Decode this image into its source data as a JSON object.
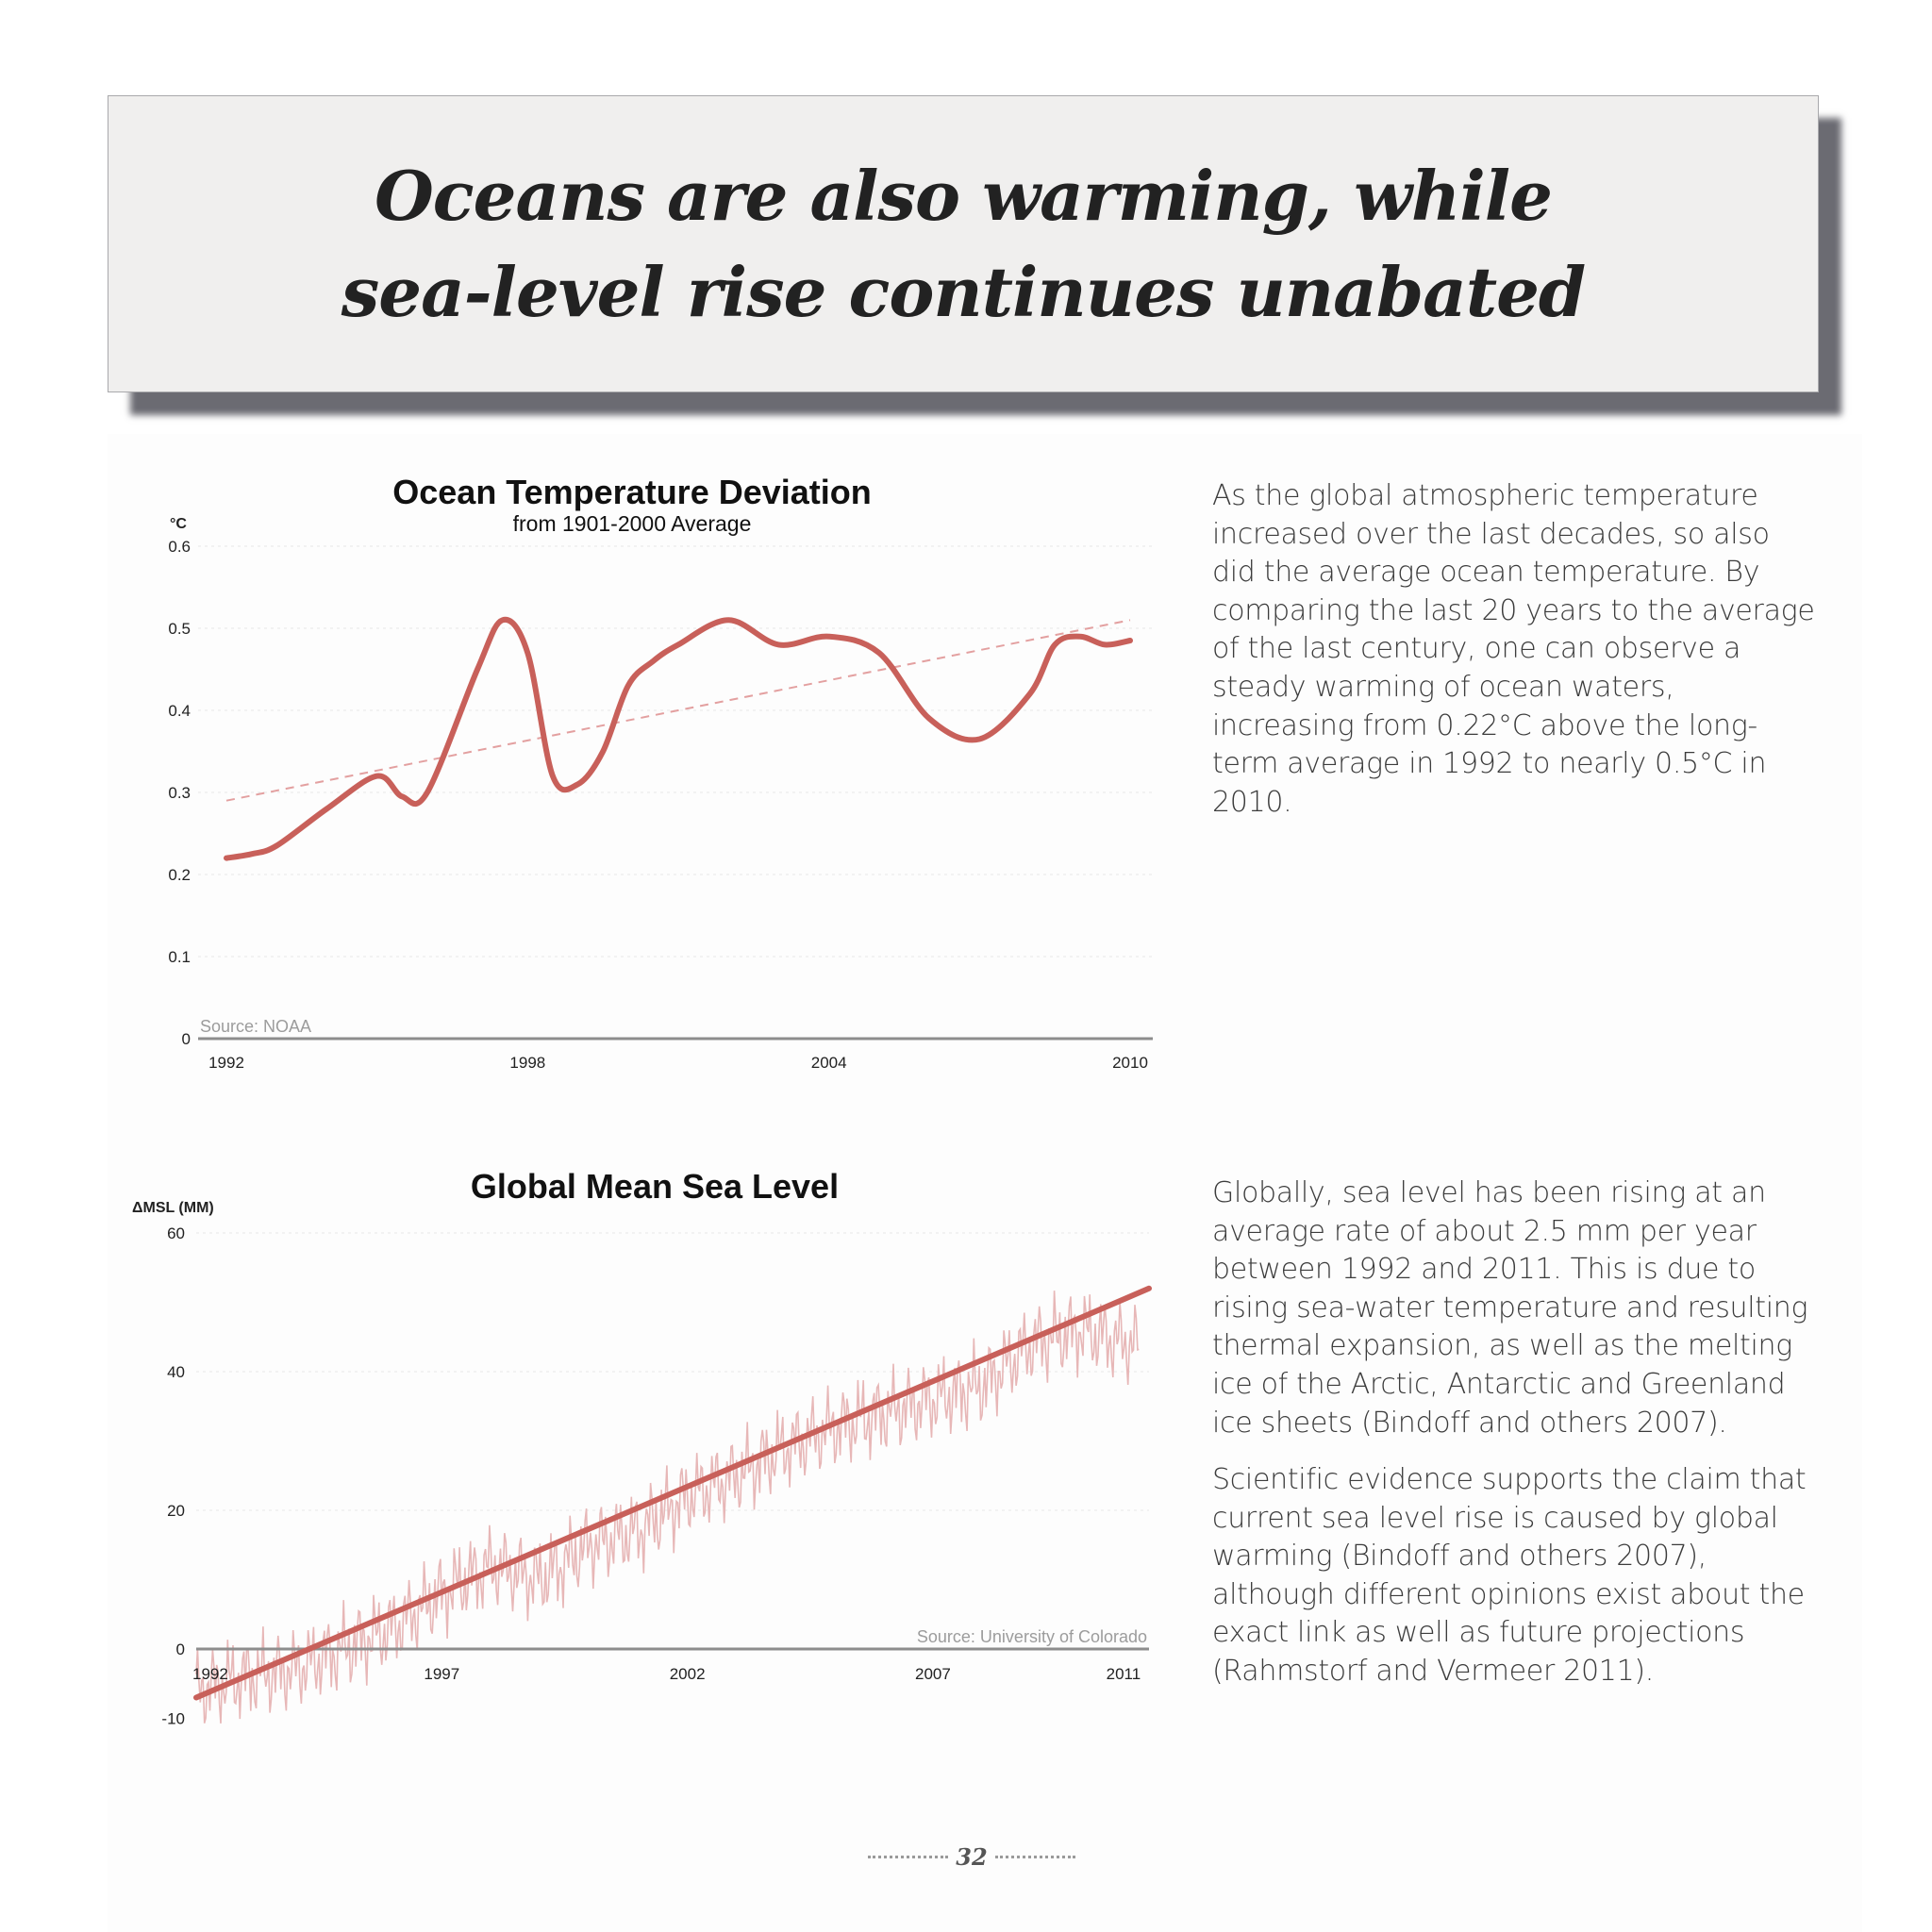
{
  "page": {
    "title": "Oceans are also warming, while sea-level rise continues unabated",
    "page_number": "32",
    "paragraph_1": "As the global atmospheric temperature increased over the last decades, so also did the average ocean temperature. By comparing the last 20 years to the average of the last century, one can observe a steady warming of ocean waters, increasing from 0.22°C above the long-term average in 1992 to nearly 0.5°C in 2010.",
    "paragraph_2": "Globally, sea level has been rising at an average rate of about 2.5 mm per year between 1992 and 2011. This is due to rising sea-water temperature and resulting thermal expansion, as well as the melting ice of the Arctic, Antarctic and Greenland ice sheets (Bindoff and others 2007).",
    "paragraph_3": "Scientific evidence supports the claim that current sea level rise is caused by global warming (Bindoff and others 2007), although different opinions exist about the exact link as well as future projections (Rahmstorf and Vermeer 2011)."
  },
  "colors": {
    "series_line": "#c8605a",
    "trend_dashed": "#e3a0a0",
    "noise_line": "#e7b7b7",
    "axis": "#8d8d8d",
    "title_box_bg": "#f0efee",
    "title_box_shadow": "#6b6b72"
  },
  "chart_data": [
    {
      "type": "line",
      "title": "Ocean Temperature Deviation",
      "subtitle": "from 1901-2000 Average",
      "ylabel": "°C",
      "source": "Source: NOAA",
      "xlim": [
        1992,
        2010
      ],
      "ylim": [
        0,
        0.6
      ],
      "yticks": [
        0,
        0.1,
        0.2,
        0.3,
        0.4,
        0.5,
        0.6
      ],
      "ytick_labels": [
        "0",
        "0.1",
        "0.2",
        "0.3",
        "0.4",
        "0.5",
        "0.6"
      ],
      "xticks": [
        1992,
        1998,
        2004,
        2010
      ],
      "xtick_labels": [
        "1992",
        "1998",
        "2004",
        "2010"
      ],
      "grid": true,
      "series": [
        {
          "x": [
            1992,
            1992.5,
            1993,
            1994,
            1995,
            1995.5,
            1996,
            1997,
            1997.5,
            1998,
            1998.5,
            1999,
            1999.5,
            2000,
            2000.5,
            2001,
            2002,
            2003,
            2004,
            2005,
            2006,
            2007,
            2008,
            2008.5,
            2009,
            2009.5,
            2010
          ],
          "y": [
            0.22,
            0.225,
            0.235,
            0.28,
            0.32,
            0.295,
            0.3,
            0.45,
            0.51,
            0.47,
            0.32,
            0.31,
            0.35,
            0.43,
            0.46,
            0.48,
            0.51,
            0.48,
            0.49,
            0.47,
            0.39,
            0.365,
            0.42,
            0.48,
            0.49,
            0.48,
            0.485
          ]
        }
      ],
      "trend": {
        "x": [
          1992,
          2010
        ],
        "y": [
          0.29,
          0.51
        ]
      }
    },
    {
      "type": "line",
      "title": "Global Mean Sea Level",
      "ylabel": "ΔMSL (MM)",
      "source": "Source: University of Colorado",
      "xlim": [
        1992,
        2011.4
      ],
      "ylim": [
        -10,
        60
      ],
      "yticks": [
        -10,
        0,
        20,
        40,
        60
      ],
      "ytick_labels": [
        "-10",
        "0",
        "20",
        "40",
        "60"
      ],
      "xticks": [
        1992,
        1997,
        2002,
        2007,
        2011
      ],
      "xtick_labels": [
        "1992",
        "1997",
        "2002",
        "2007",
        "2011"
      ],
      "grid": true,
      "series": [
        {
          "x": [
            1992,
            1993,
            1994,
            1995,
            1996,
            1997,
            1998,
            1999,
            2000,
            2001,
            2002,
            2003,
            2004,
            2005,
            2006,
            2007,
            2008,
            2009,
            2010,
            2011
          ],
          "y": [
            -6,
            -4,
            -3,
            0,
            3,
            8,
            12,
            10,
            15,
            17,
            22,
            25,
            29,
            32,
            34,
            36,
            38,
            44,
            46,
            44
          ]
        }
      ],
      "trend": {
        "x": [
          1992,
          2011.4
        ],
        "y": [
          -7,
          52
        ]
      }
    }
  ]
}
